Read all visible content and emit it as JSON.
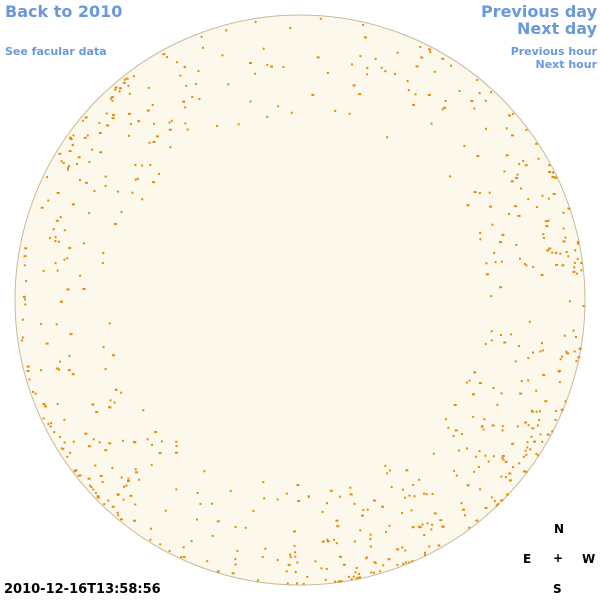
{
  "nav": {
    "back": "Back to 2010",
    "facular": "See facular data",
    "previous_day": "Previous day",
    "next_day": "Next day",
    "previous_hour": "Previous hour",
    "next_hour": "Next hour"
  },
  "timestamp": "2010-12-16T13:58:56",
  "compass": {
    "north": "N",
    "east": "E",
    "center": "+",
    "west": "W",
    "south": "S"
  }
}
